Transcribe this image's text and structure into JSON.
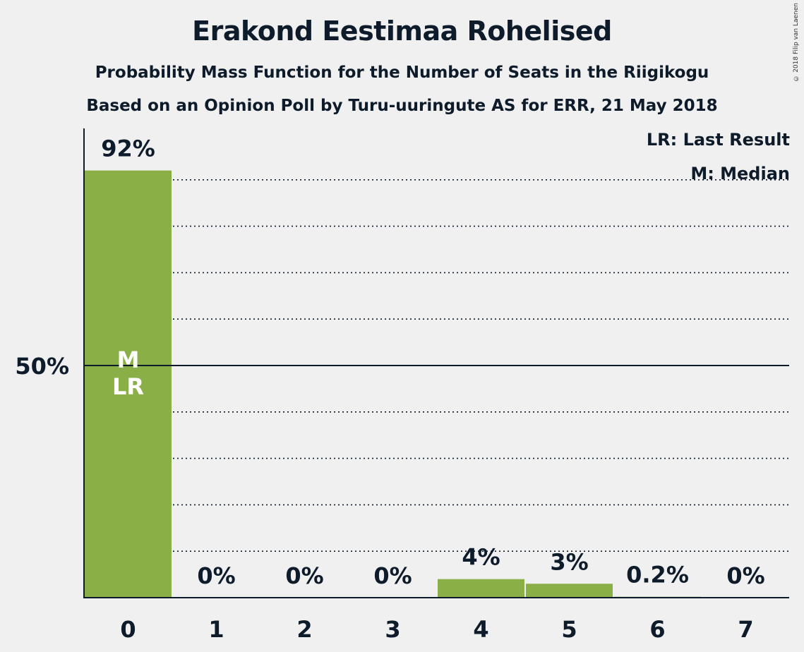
{
  "title": "Erakond Eestimaa Rohelised",
  "subtitle1": "Probability Mass Function for the Number of Seats in the Riigikogu",
  "subtitle2": "Based on an Opinion Poll by Turu-uuringute AS for ERR, 21 May 2018",
  "copyright": "© 2018 Filip van Laenen",
  "legend": {
    "last_result": "LR: Last Result",
    "median": "M: Median"
  },
  "colors": {
    "bar": "#8aaf46",
    "axis": "#0d1b2a",
    "background": "#f0f0f0"
  },
  "chart_data": {
    "type": "bar",
    "categories": [
      "0",
      "1",
      "2",
      "3",
      "4",
      "5",
      "6",
      "7"
    ],
    "values": [
      92,
      0,
      0,
      0,
      4,
      3,
      0.2,
      0
    ],
    "value_labels": [
      "92%",
      "0%",
      "0%",
      "0%",
      "4%",
      "3%",
      "0.2%",
      "0%"
    ],
    "y_tick_label": "50%",
    "y_tick_value": 50,
    "ylim": [
      0,
      100
    ],
    "gridlines": [
      10,
      20,
      30,
      40,
      60,
      70,
      80,
      90
    ],
    "bar_markers": [
      {
        "category": "0",
        "lines": [
          "M",
          "LR"
        ]
      }
    ]
  }
}
